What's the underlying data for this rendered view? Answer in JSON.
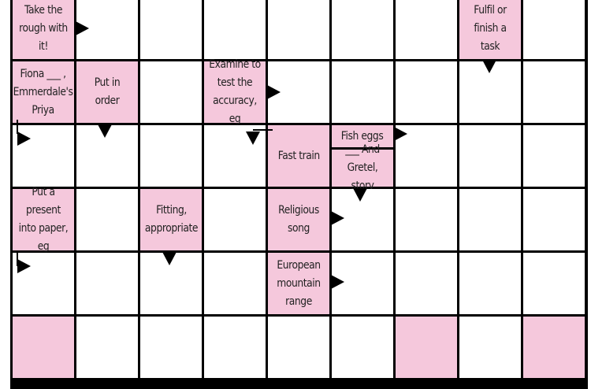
{
  "puzzle": {
    "type": "arrowword",
    "clues": {
      "take_rough": "Take the rough with it!",
      "fulfil": "Fulfil or finish a task",
      "fiona": "Fiona ___ , Emmerdale's Priya",
      "put_in_order": "Put in order",
      "examine": "Examine to test the accuracy, eg",
      "fast_train": "Fast train",
      "fish_eggs": "Fish eggs",
      "hansel": "___ And Gretel, story",
      "wrap": "Put a present into paper, eg",
      "fitting": "Fitting, appropriate",
      "religious_song": "Religious song",
      "mountain_range": "European mountain range"
    },
    "colors": {
      "clue_fill": "#f5c8dc",
      "grid": "#000000",
      "blank": "#ffffff"
    }
  }
}
